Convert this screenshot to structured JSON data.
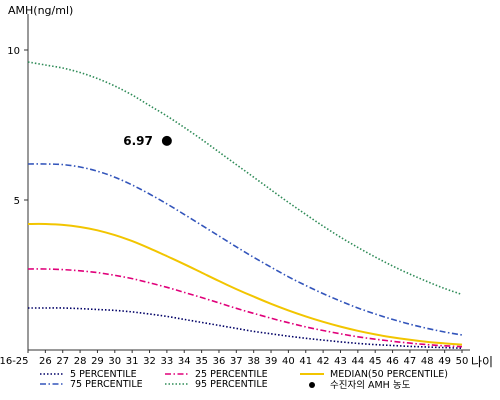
{
  "chart_data": {
    "type": "line",
    "ylabel": "AMH(ng/ml)",
    "xlabel": "나이",
    "ylim": [
      0,
      11
    ],
    "yticks": [
      "5",
      "10"
    ],
    "ytick_values": [
      5,
      10
    ],
    "categories": [
      "16-25",
      "26",
      "27",
      "28",
      "29",
      "30",
      "31",
      "32",
      "33",
      "34",
      "35",
      "36",
      "37",
      "38",
      "39",
      "40",
      "41",
      "42",
      "43",
      "44",
      "45",
      "46",
      "47",
      "48",
      "49",
      "50"
    ],
    "series": [
      {
        "name": "5 PERCENTILE",
        "color": "#000066",
        "dash": "dotted",
        "values": [
          1.4,
          1.4,
          1.4,
          1.38,
          1.35,
          1.32,
          1.27,
          1.2,
          1.12,
          1.02,
          0.92,
          0.82,
          0.72,
          0.62,
          0.54,
          0.46,
          0.39,
          0.33,
          0.27,
          0.22,
          0.18,
          0.15,
          0.12,
          0.1,
          0.08,
          0.06
        ]
      },
      {
        "name": "25 PERCENTILE",
        "color": "#e0007a",
        "dash": "dashdot",
        "values": [
          2.7,
          2.7,
          2.68,
          2.64,
          2.58,
          2.49,
          2.38,
          2.24,
          2.09,
          1.92,
          1.75,
          1.57,
          1.39,
          1.22,
          1.06,
          0.91,
          0.77,
          0.65,
          0.54,
          0.44,
          0.36,
          0.29,
          0.23,
          0.18,
          0.14,
          0.11
        ]
      },
      {
        "name": "MEDIAN(50 PERCENTILE)",
        "color": "#f2c500",
        "dash": "solid",
        "values": [
          4.2,
          4.2,
          4.17,
          4.1,
          3.99,
          3.83,
          3.63,
          3.39,
          3.13,
          2.86,
          2.58,
          2.3,
          2.03,
          1.78,
          1.54,
          1.32,
          1.12,
          0.94,
          0.78,
          0.64,
          0.52,
          0.42,
          0.34,
          0.27,
          0.22,
          0.18
        ]
      },
      {
        "name": "75 PERCENTILE",
        "color": "#3355bb",
        "dash": "dashdot",
        "values": [
          6.2,
          6.2,
          6.18,
          6.1,
          5.96,
          5.76,
          5.5,
          5.2,
          4.87,
          4.52,
          4.16,
          3.8,
          3.44,
          3.09,
          2.76,
          2.44,
          2.15,
          1.88,
          1.63,
          1.4,
          1.2,
          1.02,
          0.86,
          0.72,
          0.6,
          0.5
        ]
      },
      {
        "name": "95 PERCENTILE",
        "color": "#2e8b57",
        "dash": "dotted",
        "values": [
          9.6,
          9.5,
          9.4,
          9.25,
          9.05,
          8.8,
          8.5,
          8.15,
          7.8,
          7.42,
          7.02,
          6.6,
          6.18,
          5.76,
          5.34,
          4.92,
          4.52,
          4.13,
          3.76,
          3.42,
          3.1,
          2.8,
          2.53,
          2.28,
          2.05,
          1.85
        ]
      }
    ],
    "point": {
      "name": "수진자의 AMH 농도",
      "category": "33",
      "value": 6.97,
      "label": "6.97",
      "color": "#000000"
    },
    "grid": false,
    "legend_position": "bottom"
  }
}
